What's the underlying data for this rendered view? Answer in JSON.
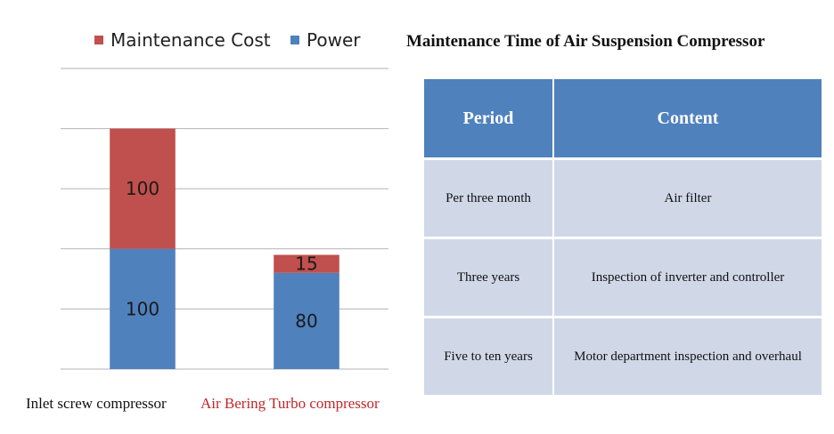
{
  "chart_data": {
    "type": "bar",
    "stacked": true,
    "categories": [
      "Inlet screw compressor",
      "Air Bering Turbo compressor"
    ],
    "category_colors": [
      "#111111",
      "#c0262a"
    ],
    "series": [
      {
        "name": "Power",
        "color": "#4f81bd",
        "values": [
          100,
          80
        ],
        "labels": [
          "100",
          "80"
        ]
      },
      {
        "name": "Maintenance  Cost",
        "color": "#c0504d",
        "values": [
          100,
          15
        ],
        "labels": [
          "100",
          "15"
        ]
      }
    ],
    "legend_order": [
      1,
      0
    ],
    "legend_position": "top",
    "ylim": [
      0,
      250
    ],
    "gridlines": [
      0,
      50,
      100,
      150,
      200,
      250
    ],
    "grid": true
  },
  "maintenance_table": {
    "title": "Maintenance Time of Air Suspension Compressor",
    "headers": [
      "Period",
      "Content"
    ],
    "rows": [
      [
        "Per three month",
        "Air filter"
      ],
      [
        "Three years",
        "Inspection of inverter and controller"
      ],
      [
        "Five to ten years",
        "Motor department inspection and overhaul"
      ]
    ],
    "header_color": "#4f81bd",
    "cell_color": "#d0d8e8"
  }
}
